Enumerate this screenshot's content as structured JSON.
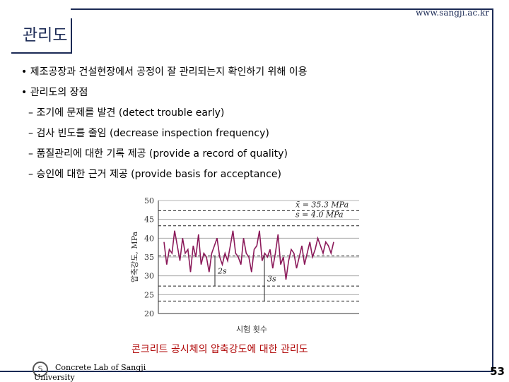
{
  "header": {
    "url": "www.sangji.ac.kr",
    "title": "관리도"
  },
  "bullets": [
    "• 제조공장과 건설현장에서 공정이 잘 관리되는지 확인하기 위해 이용",
    "• 관리도의 장점"
  ],
  "sub_points": [
    "– 조기에 문제를 발견 (detect trouble early)",
    "– 검사 빈도를 줄임 (decrease inspection frequency)",
    "– 품질관리에 대한 기록 제공 (provide a record of quality)",
    "– 승인에 대한 근거 제공 (provide basis for acceptance)"
  ],
  "chart_data": {
    "type": "line",
    "ylabel": "압축강도, MPa",
    "xlabel": "시험 횟수",
    "ylim": [
      20,
      50
    ],
    "yticks": [
      20,
      25,
      30,
      35,
      40,
      45,
      50
    ],
    "grid": "horizontal",
    "annotations": [
      "x̄ = 35.3 MPa",
      "s = 4.0 MPa",
      "2s",
      "3s"
    ],
    "mean": 35.3,
    "std": 4.0,
    "series": [
      {
        "values": [
          39,
          33,
          37,
          36,
          42,
          38,
          34,
          40,
          36,
          37,
          31,
          38,
          35,
          41,
          33,
          36,
          35,
          31,
          36,
          38,
          40,
          35,
          33,
          36,
          34,
          38,
          42,
          36,
          35,
          33,
          40,
          36,
          35,
          31,
          37,
          38,
          42,
          34,
          36,
          35,
          37,
          32,
          36,
          41,
          33,
          35,
          29,
          34,
          37,
          36,
          32,
          35,
          38,
          33,
          36,
          39,
          35,
          37,
          40,
          38,
          36,
          39,
          38,
          36,
          39
        ],
        "color": "#8b1a5a"
      }
    ]
  },
  "caption": "콘크리트 공시체의 압축강도에 대한 관리도",
  "footer": {
    "logo": "S",
    "line1": "Concrete Lab of Sangji",
    "line2": "University",
    "page": "53"
  }
}
